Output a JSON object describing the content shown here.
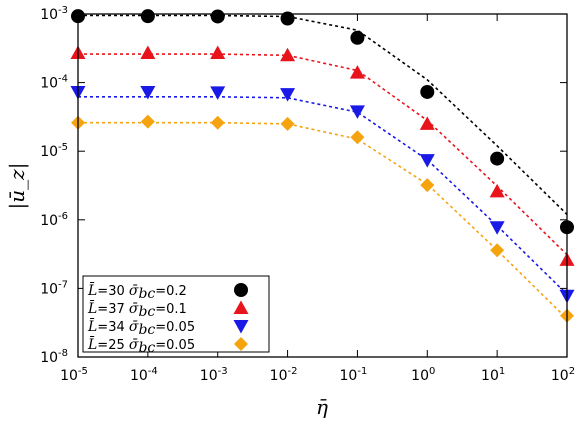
{
  "chart_data": {
    "type": "scatter",
    "title": "",
    "xlabel": "η̄",
    "ylabel": "|ū_z|",
    "xscale": "log",
    "yscale": "log",
    "xlim": [
      1e-05,
      100
    ],
    "ylim": [
      1e-08,
      0.001
    ],
    "x_ticks": [
      {
        "base": "10",
        "exp": "-5",
        "value": 1e-05
      },
      {
        "base": "10",
        "exp": "-4",
        "value": 0.0001
      },
      {
        "base": "10",
        "exp": "-3",
        "value": 0.001
      },
      {
        "base": "10",
        "exp": "-2",
        "value": 0.01
      },
      {
        "base": "10",
        "exp": "-1",
        "value": 0.1
      },
      {
        "base": "10",
        "exp": "0",
        "value": 1
      },
      {
        "base": "10",
        "exp": "1",
        "value": 10
      },
      {
        "base": "10",
        "exp": "2",
        "value": 100
      }
    ],
    "y_ticks": [
      {
        "base": "10",
        "exp": "-8",
        "value": 1e-08
      },
      {
        "base": "10",
        "exp": "-7",
        "value": 1e-07
      },
      {
        "base": "10",
        "exp": "-6",
        "value": 1e-06
      },
      {
        "base": "10",
        "exp": "-5",
        "value": 1e-05
      },
      {
        "base": "10",
        "exp": "-4",
        "value": 0.0001
      },
      {
        "base": "10",
        "exp": "-3",
        "value": 0.001
      }
    ],
    "grid": false,
    "legend_position": "bottom-left",
    "series": [
      {
        "name": "L̄=30 σ̄bc=0.2",
        "legend_sym1": "L̄",
        "legend_val1": "=30",
        "legend_sym2": "σ̄",
        "legend_sub2": "bc",
        "legend_val2": "=0.2",
        "color": "#000000",
        "marker": "circle",
        "x": [
          1e-05,
          0.0001,
          0.001,
          0.01,
          0.1,
          1,
          10,
          100
        ],
        "y": [
          0.00093,
          0.00093,
          0.00092,
          0.00086,
          0.00045,
          7.3e-05,
          7.8e-06,
          7.8e-07
        ],
        "fit_y": [
          0.00095,
          0.00095,
          0.00095,
          0.00092,
          0.00058,
          0.00011,
          1.2e-05,
          1.2e-06
        ]
      },
      {
        "name": "L̄=37 σ̄bc=0.1",
        "legend_sym1": "L̄",
        "legend_val1": "=37",
        "legend_sym2": "σ̄",
        "legend_sub2": "bc",
        "legend_val2": "=0.1",
        "color": "#e8141c",
        "marker": "triangle-up",
        "x": [
          1e-05,
          0.0001,
          0.001,
          0.01,
          0.1,
          1,
          10,
          100
        ],
        "y": [
          0.00027,
          0.00027,
          0.00027,
          0.00025,
          0.00014,
          2.5e-05,
          2.6e-06,
          2.6e-07
        ],
        "fit_y": [
          0.00026,
          0.00026,
          0.00026,
          0.00025,
          0.00015,
          2.8e-05,
          3.1e-06,
          3.1e-07
        ]
      },
      {
        "name": "L̄=34 σ̄bc=0.05",
        "legend_sym1": "L̄",
        "legend_val1": "=34",
        "legend_sym2": "σ̄",
        "legend_sub2": "bc",
        "legend_val2": "=0.05",
        "color": "#1a1ae6",
        "marker": "triangle-down",
        "x": [
          1e-05,
          0.0001,
          0.001,
          0.01,
          0.1,
          1,
          10,
          100
        ],
        "y": [
          7.3e-05,
          7.3e-05,
          7.2e-05,
          6.8e-05,
          3.8e-05,
          7.4e-06,
          7.8e-07,
          7.8e-08
        ],
        "fit_y": [
          6.2e-05,
          6.2e-05,
          6.2e-05,
          6e-05,
          3.7e-05,
          7.5e-06,
          8.2e-07,
          8.2e-08
        ]
      },
      {
        "name": "L̄=25 σ̄bc=0.05",
        "legend_sym1": "L̄",
        "legend_val1": "=25",
        "legend_sym2": "σ̄",
        "legend_sub2": "bc",
        "legend_val2": "=0.05",
        "color": "#f5a40f",
        "marker": "diamond",
        "x": [
          1e-05,
          0.0001,
          0.001,
          0.01,
          0.1,
          1,
          10,
          100
        ],
        "y": [
          2.6e-05,
          2.7e-05,
          2.6e-05,
          2.5e-05,
          1.6e-05,
          3.2e-06,
          3.6e-07,
          4e-08
        ],
        "fit_y": [
          2.6e-05,
          2.6e-05,
          2.6e-05,
          2.5e-05,
          1.5e-05,
          3.3e-06,
          3.6e-07,
          3.6e-08
        ]
      }
    ]
  }
}
